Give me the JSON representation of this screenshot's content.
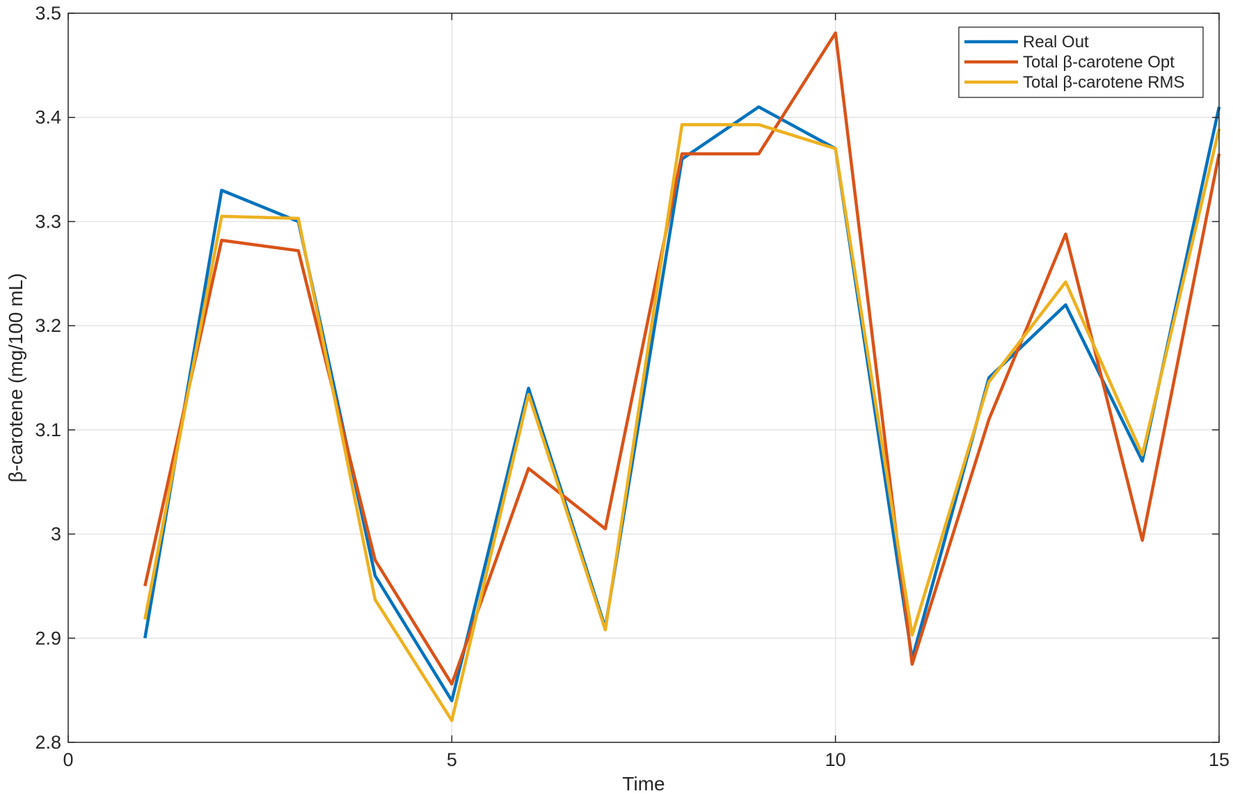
{
  "chart_data": {
    "type": "line",
    "xlabel": "Time",
    "ylabel": "β-carotene (mg/100 mL)",
    "xlim": [
      0,
      15
    ],
    "ylim": [
      2.8,
      3.5
    ],
    "grid": true,
    "legend_position": "top-right",
    "x_ticks": [
      0,
      5,
      10,
      15
    ],
    "x_tick_labels": [
      "0",
      "5",
      "10",
      "15"
    ],
    "y_ticks": [
      2.8,
      2.9,
      3.0,
      3.1,
      3.2,
      3.3,
      3.4,
      3.5
    ],
    "y_tick_labels": [
      "2.8",
      "2.9",
      "3",
      "3.1",
      "3.2",
      "3.3",
      "3.4",
      "3.5"
    ],
    "x": [
      1,
      2,
      3,
      4,
      5,
      6,
      7,
      8,
      9,
      10,
      11,
      12,
      13,
      14,
      15
    ],
    "series": [
      {
        "name": "Real Out",
        "color": "#0072BD",
        "values": [
          2.9,
          3.33,
          3.3,
          2.96,
          2.84,
          3.14,
          2.91,
          3.36,
          3.41,
          3.37,
          2.88,
          3.15,
          3.22,
          3.07,
          3.41
        ]
      },
      {
        "name": "Total β-carotene Opt",
        "color": "#D95319",
        "values": [
          2.95,
          3.282,
          3.272,
          2.975,
          2.856,
          3.063,
          3.005,
          3.365,
          3.365,
          3.481,
          2.875,
          3.11,
          3.288,
          2.994,
          3.365
        ]
      },
      {
        "name": "Total β-carotene RMS",
        "color": "#EDB120",
        "values": [
          2.918,
          3.305,
          3.303,
          2.937,
          2.821,
          3.134,
          2.908,
          3.393,
          3.393,
          3.37,
          2.903,
          3.146,
          3.242,
          3.076,
          3.389
        ]
      }
    ]
  }
}
